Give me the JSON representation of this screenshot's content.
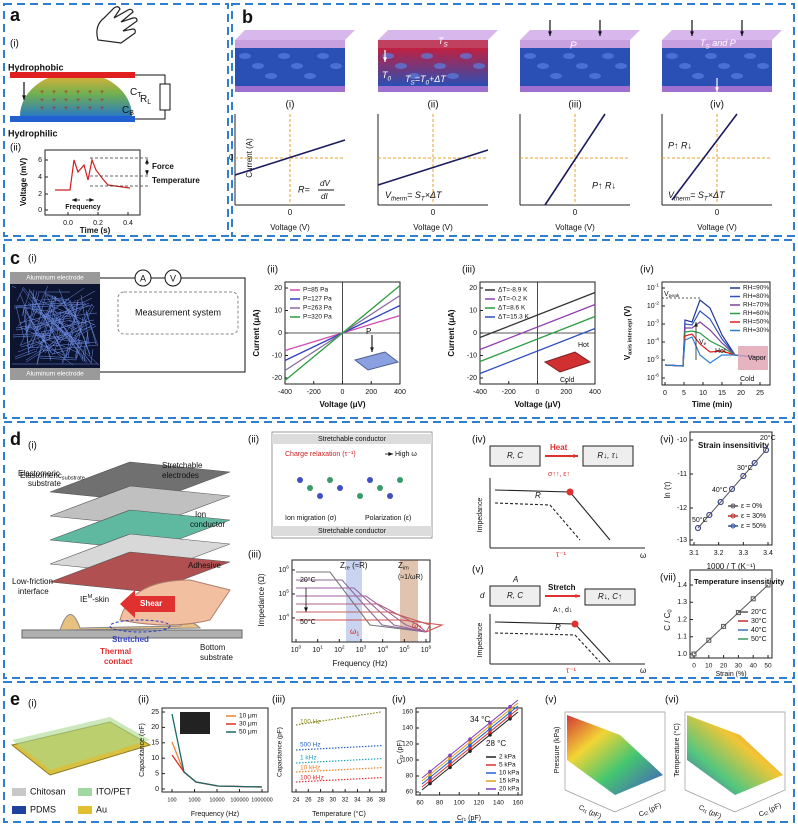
{
  "a": {
    "label": "a",
    "i": "(i)",
    "ii": "(ii)",
    "hydrophobic": "Hydrophobic",
    "hydrophilic": "Hydrophilic",
    "ct": [
      "C",
      "T"
    ],
    "cb": [
      "C",
      "B"
    ],
    "rl": [
      "R",
      "L"
    ],
    "y_label": "Voltage (mV)",
    "x_label": "Time (s)",
    "yticks": [
      "6",
      "4",
      "2",
      "0"
    ],
    "xticks": [
      "0.0",
      "0.2",
      "0.4"
    ],
    "force": "Force",
    "temperature": "Temperature",
    "frequency": "Frequency"
  },
  "b": {
    "label": "b",
    "roman": [
      "(i)",
      "(ii)",
      "(iii)",
      "(iv)"
    ],
    "block_ts": [
      "T",
      "S"
    ],
    "block_t0": [
      "T",
      "0"
    ],
    "block_eq": [
      "T",
      "S",
      "=T",
      "0",
      "+ΔT"
    ],
    "block_p": "P",
    "block_tsp": [
      "T",
      "S",
      " and P"
    ],
    "y_label": "Current (A)",
    "x_label": "Voltage (V)",
    "zero": "0",
    "r_eq": "R=",
    "r_num": "dV",
    "r_den": "dI",
    "vtherm": [
      "V",
      "therm",
      "= S",
      "T",
      "×ΔT"
    ],
    "p_r": "P↑  R↓"
  },
  "c": {
    "label": "c",
    "i": "(i)",
    "electrode": "Aluminum electrode",
    "measurement": "Measurement system",
    "a": "A",
    "v": "V",
    "ii": {
      "label": "(ii)",
      "y_label": "Current (μA)",
      "x_label": "Voltage (μV)",
      "yticks": [
        "20",
        "10",
        "0",
        "-10",
        "-20"
      ],
      "xticks": [
        "-400",
        "-200",
        "0",
        "200",
        "400"
      ],
      "legend": [
        "P=85 Pa",
        "P=127 Pa",
        "P=263 Pa",
        "P=320 Pa"
      ],
      "colors": [
        "#d04cb0",
        "#3040c0",
        "#8a6aa0",
        "#2a9d40"
      ],
      "inset": "P"
    },
    "iii": {
      "label": "(iii)",
      "y_label": "Current (μA)",
      "x_label": "Voltage (μV)",
      "yticks": [
        "20",
        "10",
        "0",
        "-10",
        "-20"
      ],
      "xticks": [
        "-400",
        "-200",
        "0",
        "200",
        "400"
      ],
      "legend": [
        "ΔT=-8.9 K",
        "ΔT=-0.2 K",
        "ΔT=8.6 K",
        "ΔT=15.3 K"
      ],
      "colors": [
        "#333333",
        "#9040b0",
        "#2a9d40",
        "#3050c0"
      ],
      "hot": "Hot",
      "cold": "Cold"
    },
    "iv": {
      "label": "(iv)",
      "y_label": [
        "V",
        "axis intercept",
        " (V)"
      ],
      "x_label": "Time (min)",
      "base": "10",
      "yexps": [
        "-1",
        "-2",
        "-3",
        "-4",
        "-5",
        "-6"
      ],
      "xticks": [
        "0",
        "5",
        "10",
        "15",
        "20",
        "25"
      ],
      "legend": [
        "RH=90%",
        "RH=80%",
        "RH=70%",
        "RH=60%",
        "RH=50%",
        "RH=30%"
      ],
      "colors": [
        "#1f3a93",
        "#3050c0",
        "#8040a0",
        "#2a9d40",
        "#e02020",
        "#2a80d0"
      ],
      "vpeak": [
        "V",
        "peak"
      ],
      "ve": [
        "V",
        "e"
      ],
      "hot": "Hot",
      "cold": "Cold",
      "vapor": "Vapor"
    }
  },
  "d": {
    "label": "d",
    "i": "(i)",
    "ii": "(ii)",
    "iii": "(iii)",
    "iv": "(iv)",
    "v": "(v)",
    "vi": "(vi)",
    "vii": "(vii)",
    "elastomeric": [
      "Elastomeric",
      "substrate"
    ],
    "electrodes": [
      "Stretchable",
      "electrodes"
    ],
    "ion_conductor": [
      "Ion",
      "conductor"
    ],
    "adhesive": "Adhesive",
    "low_friction": [
      "Low-friction",
      "interface"
    ],
    "ie_skin": [
      "IE",
      "M",
      "-skin"
    ],
    "shear": "Shear",
    "stretched": "Stretched",
    "thermal": [
      "Thermal",
      "contact"
    ],
    "bottom": [
      "Bottom",
      "substrate"
    ],
    "conductor": "Stretchable conductor",
    "charge_relax": "Charge relaxation (τ⁻¹)",
    "high_w": "High ω",
    "ion_migration": "Ion migration (σ)",
    "polarization": "Polarization (ε)",
    "iii_plot": {
      "y_label": "Impedance (Ω)",
      "x_label": "Frequency (Hz)",
      "base": "10",
      "yexps": [
        "6",
        "5",
        "4"
      ],
      "xexps": [
        "0",
        "1",
        "2",
        "3",
        "4",
        "5",
        "6"
      ],
      "t20": "20°C",
      "t50": "50°C",
      "zre": [
        "Z",
        "re",
        " (≈R)"
      ],
      "zim": [
        "Z",
        "im"
      ],
      "zim_eq": "(≈1/ωR)",
      "w1": [
        "ω",
        "1"
      ],
      "w2": [
        "ω",
        "2"
      ]
    },
    "iv_plot": {
      "rc": "R, C",
      "heat": "Heat",
      "rc_after": "R↓, τ↓",
      "change": "σ↑↑, ε↑",
      "impedance": "Impedance",
      "r": "R",
      "tau": "τ⁻¹",
      "omega": "ω"
    },
    "v_plot": {
      "a": "A",
      "d": "d",
      "rc": "R, C",
      "stretch": "Stretch",
      "rc_after": "R↓, C↑",
      "change": "A↑, d↓",
      "impedance": "Impedance",
      "r": "R",
      "tau": "τ⁻¹",
      "omega": "ω"
    },
    "vi_plot": {
      "title": "Strain insensitivity",
      "y_label": "ln (τ)",
      "x_label": "1000 / T (K⁻¹)",
      "yticks": [
        "-10",
        "-11",
        "-12",
        "-13"
      ],
      "xticks": [
        "3.1",
        "3.2",
        "3.3",
        "3.4"
      ],
      "temps": [
        "20°C",
        "30°C",
        "40°C",
        "50°C"
      ],
      "legend": [
        "ε = 0%",
        "ε = 30%",
        "ε = 50%"
      ],
      "colors": [
        "#555555",
        "#c03030",
        "#3050a0"
      ]
    },
    "vii_plot": {
      "title": "Temperature insensitivity",
      "y_label": [
        "C / C",
        "0"
      ],
      "x_label": "Strain (%)",
      "yticks": [
        "1.4",
        "1.3",
        "1.2",
        "1.1",
        "1.0"
      ],
      "xticks": [
        "0",
        "10",
        "20",
        "30",
        "40",
        "50"
      ],
      "legend": [
        "20°C",
        "30°C",
        "40°C",
        "50°C"
      ],
      "colors": [
        "#555555",
        "#c03030",
        "#3a6fb0",
        "#3a9a60"
      ]
    }
  },
  "e": {
    "label": "e",
    "i": "(i)",
    "ii": "(ii)",
    "iii": "(iii)",
    "iv": "(iv)",
    "v": "(v)",
    "vi": "(vi)",
    "chitosan": "Chitosan",
    "ito": "ITO/PET",
    "pdms": "PDMS",
    "au": "Au",
    "ii_plot": {
      "y_label": "Capacitance (nF)",
      "x_label": "Frequency (Hz)",
      "yticks": [
        "25",
        "20",
        "15",
        "10",
        "5",
        "0"
      ],
      "xticks": [
        "100",
        "1000",
        "10000",
        "100000",
        "1000000"
      ],
      "legend": [
        "10 μm",
        "30 μm",
        "50 μm"
      ],
      "colors": [
        "#f08030",
        "#e03020",
        "#1a6a6a"
      ]
    },
    "iii_plot": {
      "y_label": "Capacitance (pF)",
      "x_label": "Temperature (°C)",
      "xticks": [
        "24",
        "26",
        "28",
        "30",
        "32",
        "34",
        "36",
        "38"
      ],
      "legend": [
        "100 Hz",
        "500 Hz",
        "1 kHz",
        "10 kHz",
        "100 kHz"
      ],
      "colors": [
        "#8a8a20",
        "#2060c0",
        "#20a0c0",
        "#f08020",
        "#e03030"
      ]
    },
    "iv_plot": {
      "y_label": [
        "C",
        "f2",
        " (pF)"
      ],
      "x_label": [
        "C",
        "f1",
        " (pF)"
      ],
      "yticks": [
        "160",
        "140",
        "120",
        "100",
        "80",
        "60"
      ],
      "xticks": [
        "60",
        "80",
        "100",
        "120",
        "140",
        "160"
      ],
      "t34": "34 °C",
      "t28": "28 °C",
      "legend": [
        "2 kPa",
        "5 kPa",
        "10 kPa",
        "15 kPa",
        "20 kPa"
      ],
      "colors": [
        "#222222",
        "#e03030",
        "#2060d0",
        "#e0a020",
        "#8040c0"
      ]
    },
    "v_plot": {
      "z_label": "Pressure (kPa)",
      "x_label": [
        "C",
        "f1",
        " (pF)"
      ],
      "y_label": [
        "C",
        "f2",
        " (pF)"
      ]
    },
    "vi_plot": {
      "z_label": "Temperature (°C)",
      "x_label": [
        "C",
        "f1",
        " (pF)"
      ],
      "y_label": [
        "C",
        "f2",
        " (pF)"
      ]
    }
  }
}
